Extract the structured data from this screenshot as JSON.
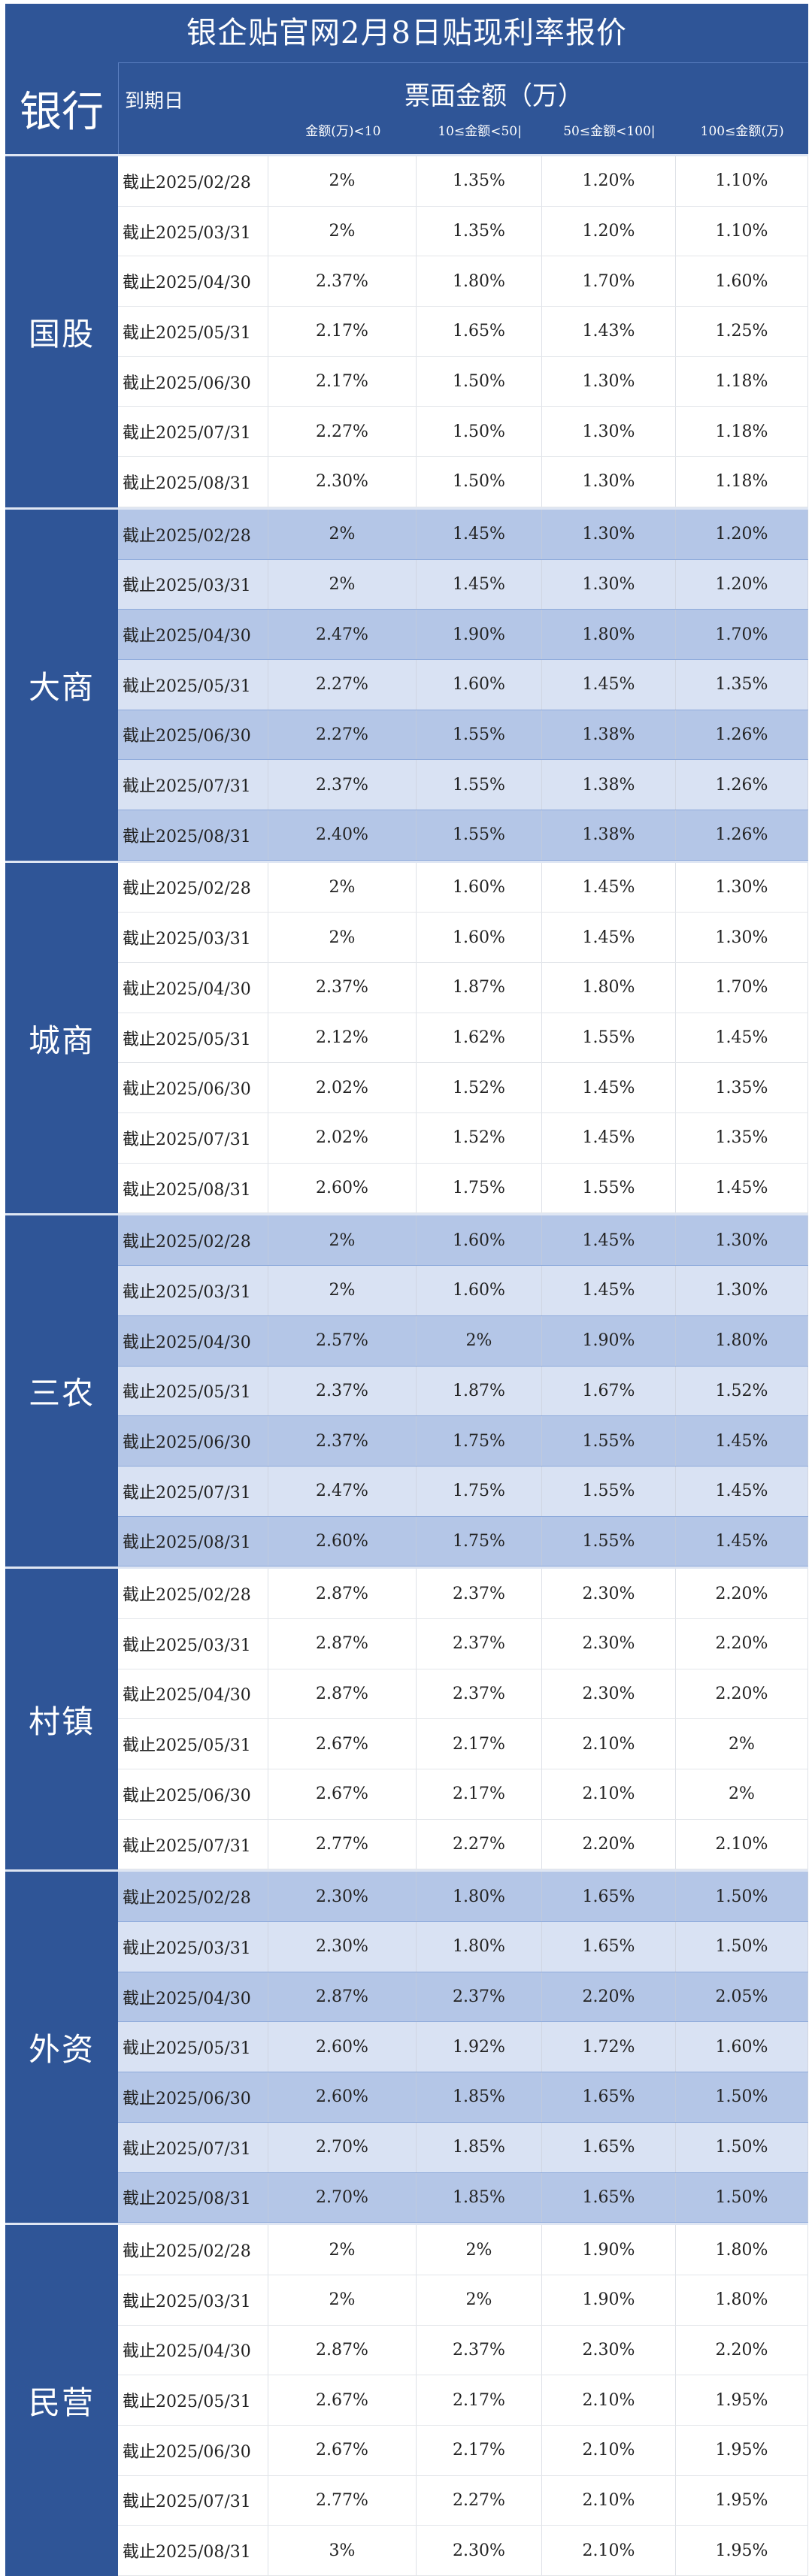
{
  "title": "银企贴官网2月8日贴现利率报价",
  "header": {
    "bank": "银行",
    "maturity": "到期日",
    "amount_title": "票面金额（万）",
    "columns": [
      "金额(万)<10",
      "10≤金额<50|",
      "50≤金额<100|",
      "100≤金额(万)"
    ]
  },
  "colors": {
    "header_bg": "#2f5597",
    "shade_dark": "#b4c6e7",
    "shade_light": "#d9e2f3"
  },
  "watermark": "银企贴官网",
  "groups": [
    {
      "name": "国股",
      "rows": [
        [
          "截止2025/02/28",
          "2%",
          "1.35%",
          "1.20%",
          "1.10%"
        ],
        [
          "截止2025/03/31",
          "2%",
          "1.35%",
          "1.20%",
          "1.10%"
        ],
        [
          "截止2025/04/30",
          "2.37%",
          "1.80%",
          "1.70%",
          "1.60%"
        ],
        [
          "截止2025/05/31",
          "2.17%",
          "1.65%",
          "1.43%",
          "1.25%"
        ],
        [
          "截止2025/06/30",
          "2.17%",
          "1.50%",
          "1.30%",
          "1.18%"
        ],
        [
          "截止2025/07/31",
          "2.27%",
          "1.50%",
          "1.30%",
          "1.18%"
        ],
        [
          "截止2025/08/31",
          "2.30%",
          "1.50%",
          "1.30%",
          "1.18%"
        ]
      ]
    },
    {
      "name": "大商",
      "rows": [
        [
          "截止2025/02/28",
          "2%",
          "1.45%",
          "1.30%",
          "1.20%"
        ],
        [
          "截止2025/03/31",
          "2%",
          "1.45%",
          "1.30%",
          "1.20%"
        ],
        [
          "截止2025/04/30",
          "2.47%",
          "1.90%",
          "1.80%",
          "1.70%"
        ],
        [
          "截止2025/05/31",
          "2.27%",
          "1.60%",
          "1.45%",
          "1.35%"
        ],
        [
          "截止2025/06/30",
          "2.27%",
          "1.55%",
          "1.38%",
          "1.26%"
        ],
        [
          "截止2025/07/31",
          "2.37%",
          "1.55%",
          "1.38%",
          "1.26%"
        ],
        [
          "截止2025/08/31",
          "2.40%",
          "1.55%",
          "1.38%",
          "1.26%"
        ]
      ]
    },
    {
      "name": "城商",
      "rows": [
        [
          "截止2025/02/28",
          "2%",
          "1.60%",
          "1.45%",
          "1.30%"
        ],
        [
          "截止2025/03/31",
          "2%",
          "1.60%",
          "1.45%",
          "1.30%"
        ],
        [
          "截止2025/04/30",
          "2.37%",
          "1.87%",
          "1.80%",
          "1.70%"
        ],
        [
          "截止2025/05/31",
          "2.12%",
          "1.62%",
          "1.55%",
          "1.45%"
        ],
        [
          "截止2025/06/30",
          "2.02%",
          "1.52%",
          "1.45%",
          "1.35%"
        ],
        [
          "截止2025/07/31",
          "2.02%",
          "1.52%",
          "1.45%",
          "1.35%"
        ],
        [
          "截止2025/08/31",
          "2.60%",
          "1.75%",
          "1.55%",
          "1.45%"
        ]
      ]
    },
    {
      "name": "三农",
      "rows": [
        [
          "截止2025/02/28",
          "2%",
          "1.60%",
          "1.45%",
          "1.30%"
        ],
        [
          "截止2025/03/31",
          "2%",
          "1.60%",
          "1.45%",
          "1.30%"
        ],
        [
          "截止2025/04/30",
          "2.57%",
          "2%",
          "1.90%",
          "1.80%"
        ],
        [
          "截止2025/05/31",
          "2.37%",
          "1.87%",
          "1.67%",
          "1.52%"
        ],
        [
          "截止2025/06/30",
          "2.37%",
          "1.75%",
          "1.55%",
          "1.45%"
        ],
        [
          "截止2025/07/31",
          "2.47%",
          "1.75%",
          "1.55%",
          "1.45%"
        ],
        [
          "截止2025/08/31",
          "2.60%",
          "1.75%",
          "1.55%",
          "1.45%"
        ]
      ]
    },
    {
      "name": "村镇",
      "rows": [
        [
          "截止2025/02/28",
          "2.87%",
          "2.37%",
          "2.30%",
          "2.20%"
        ],
        [
          "截止2025/03/31",
          "2.87%",
          "2.37%",
          "2.30%",
          "2.20%"
        ],
        [
          "截止2025/04/30",
          "2.87%",
          "2.37%",
          "2.30%",
          "2.20%"
        ],
        [
          "截止2025/05/31",
          "2.67%",
          "2.17%",
          "2.10%",
          "2%"
        ],
        [
          "截止2025/06/30",
          "2.67%",
          "2.17%",
          "2.10%",
          "2%"
        ],
        [
          "截止2025/07/31",
          "2.77%",
          "2.27%",
          "2.20%",
          "2.10%"
        ]
      ]
    },
    {
      "name": "外资",
      "rows": [
        [
          "截止2025/02/28",
          "2.30%",
          "1.80%",
          "1.65%",
          "1.50%"
        ],
        [
          "截止2025/03/31",
          "2.30%",
          "1.80%",
          "1.65%",
          "1.50%"
        ],
        [
          "截止2025/04/30",
          "2.87%",
          "2.37%",
          "2.20%",
          "2.05%"
        ],
        [
          "截止2025/05/31",
          "2.60%",
          "1.92%",
          "1.72%",
          "1.60%"
        ],
        [
          "截止2025/06/30",
          "2.60%",
          "1.85%",
          "1.65%",
          "1.50%"
        ],
        [
          "截止2025/07/31",
          "2.70%",
          "1.85%",
          "1.65%",
          "1.50%"
        ],
        [
          "截止2025/08/31",
          "2.70%",
          "1.85%",
          "1.65%",
          "1.50%"
        ]
      ]
    },
    {
      "name": "民营",
      "rows": [
        [
          "截止2025/02/28",
          "2%",
          "2%",
          "1.90%",
          "1.80%"
        ],
        [
          "截止2025/03/31",
          "2%",
          "2%",
          "1.90%",
          "1.80%"
        ],
        [
          "截止2025/04/30",
          "2.87%",
          "2.37%",
          "2.30%",
          "2.20%"
        ],
        [
          "截止2025/05/31",
          "2.67%",
          "2.17%",
          "2.10%",
          "1.95%"
        ],
        [
          "截止2025/06/30",
          "2.67%",
          "2.17%",
          "2.10%",
          "1.95%"
        ],
        [
          "截止2025/07/31",
          "2.77%",
          "2.27%",
          "2.10%",
          "1.95%"
        ],
        [
          "截止2025/08/31",
          "3%",
          "2.30%",
          "2.10%",
          "1.95%"
        ]
      ]
    }
  ]
}
